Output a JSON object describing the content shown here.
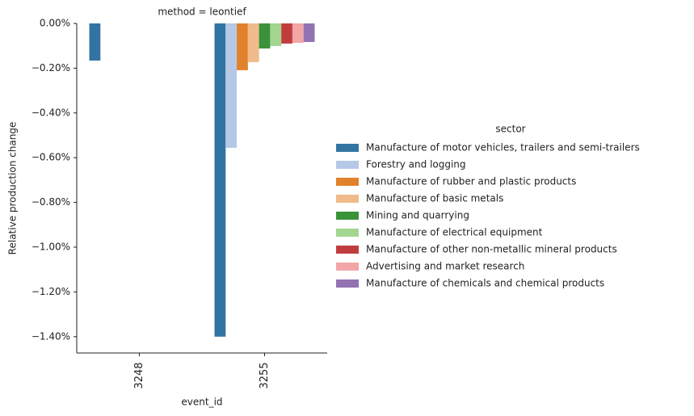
{
  "chart_data": {
    "type": "bar",
    "title": "method = leontief",
    "x_label": "event_id",
    "y_label": "Relative production change",
    "legend_title": "sector",
    "legend_position": "right",
    "grid": false,
    "categories": [
      "3248",
      "3255"
    ],
    "ylim": [
      -1.473,
      0
    ],
    "yticks": [
      {
        "value": 0,
        "label": "0.00%"
      },
      {
        "value": -0.2,
        "label": "−0.20%"
      },
      {
        "value": -0.4,
        "label": "−0.40%"
      },
      {
        "value": -0.6,
        "label": "−0.60%"
      },
      {
        "value": -0.8,
        "label": "−0.80%"
      },
      {
        "value": -1.0,
        "label": "−1.00%"
      },
      {
        "value": -1.2,
        "label": "−1.20%"
      },
      {
        "value": -1.4,
        "label": "−1.40%"
      }
    ],
    "series": [
      {
        "name": "Manufacture of motor vehicles, trailers and semi-trailers",
        "color": "#3274a1",
        "values": [
          -0.166,
          -1.4
        ]
      },
      {
        "name": "Forestry and logging",
        "color": "#b5c9e6",
        "values": [
          null,
          -0.556
        ]
      },
      {
        "name": "Manufacture of rubber and plastic products",
        "color": "#e1812c",
        "values": [
          null,
          -0.209
        ]
      },
      {
        "name": "Manufacture of basic metals",
        "color": "#f0bb8a",
        "values": [
          null,
          -0.173
        ]
      },
      {
        "name": "Mining and quarrying",
        "color": "#3a923a",
        "values": [
          null,
          -0.112
        ]
      },
      {
        "name": "Manufacture of electrical equipment",
        "color": "#a3d690",
        "values": [
          null,
          -0.101
        ]
      },
      {
        "name": "Manufacture of other non-metallic mineral products",
        "color": "#c03d3e",
        "values": [
          null,
          -0.09
        ]
      },
      {
        "name": "Advertising and market research",
        "color": "#f2a6a7",
        "values": [
          null,
          -0.087
        ]
      },
      {
        "name": "Manufacture of chemicals and chemical products",
        "color": "#9372b2",
        "values": [
          null,
          -0.083
        ]
      }
    ]
  }
}
